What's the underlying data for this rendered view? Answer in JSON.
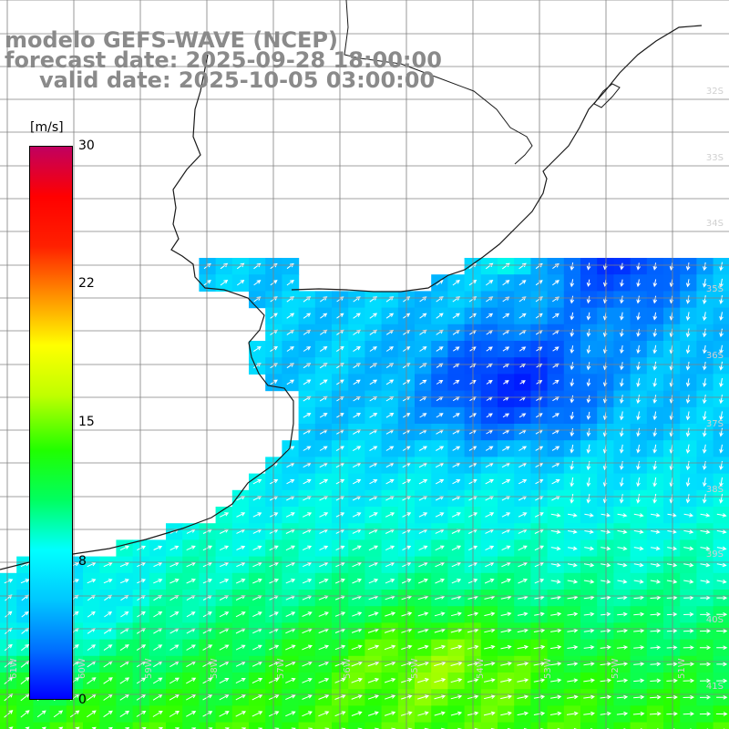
{
  "header": {
    "line1": "modelo GEFS-WAVE (NCEP)",
    "line2": "forecast date: 2025-09-28 18:00:00",
    "line3": "valid date: 2025-10-05 03:00:00"
  },
  "colorbar": {
    "unit": "[m/s]",
    "ticks": [
      "30",
      "22",
      "15",
      "8",
      "0"
    ],
    "min": 0,
    "max": 30,
    "colors": [
      "#0000ff",
      "#0070ff",
      "#00c8ff",
      "#00ffff",
      "#00ff60",
      "#20ff00",
      "#c0ff00",
      "#ffff00",
      "#ff9000",
      "#ff2000",
      "#ff0000",
      "#c00060"
    ]
  },
  "map": {
    "latitude_labels": [
      "32S",
      "33S",
      "34S",
      "35S",
      "36S",
      "37S",
      "38S",
      "39S",
      "40S",
      "41S"
    ],
    "longitude_labels": [
      "61W",
      "60W",
      "59W",
      "58W",
      "57W",
      "56W",
      "55W",
      "54W",
      "53W",
      "52W",
      "51W"
    ],
    "land_color": "#ffffff",
    "grid_color": "#808080"
  }
}
